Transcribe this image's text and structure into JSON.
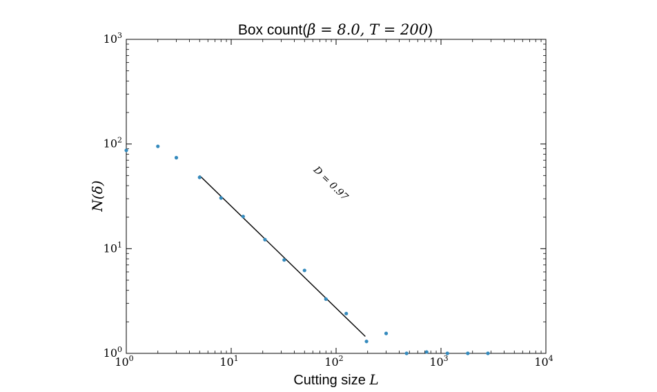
{
  "chart_data": {
    "type": "scatter",
    "title_prefix": "Box count(",
    "title_math": "β = 8.0, T = 200",
    "title_suffix": ")",
    "xlabel_text": "Cutting size ",
    "xlabel_math": "L",
    "ylabel": "N(δ)",
    "xscale": "log",
    "yscale": "log",
    "xlim": [
      1,
      10000
    ],
    "ylim": [
      1,
      1000
    ],
    "x_ticks": [
      {
        "base": "10",
        "exp": "0",
        "value": 1
      },
      {
        "base": "10",
        "exp": "1",
        "value": 10
      },
      {
        "base": "10",
        "exp": "2",
        "value": 100
      },
      {
        "base": "10",
        "exp": "3",
        "value": 1000
      },
      {
        "base": "10",
        "exp": "4",
        "value": 10000
      }
    ],
    "y_ticks": [
      {
        "base": "10",
        "exp": "0",
        "value": 1
      },
      {
        "base": "10",
        "exp": "1",
        "value": 10
      },
      {
        "base": "10",
        "exp": "2",
        "value": 100
      },
      {
        "base": "10",
        "exp": "3",
        "value": 1000
      }
    ],
    "grid": false,
    "marker_color": "#348abd",
    "line_color": "#000000",
    "series": [
      {
        "type": "scatter",
        "points": [
          {
            "x": 1,
            "y": 87
          },
          {
            "x": 2,
            "y": 95
          },
          {
            "x": 3,
            "y": 74
          },
          {
            "x": 5,
            "y": 48
          },
          {
            "x": 8,
            "y": 30.5
          },
          {
            "x": 13,
            "y": 20.3
          },
          {
            "x": 21,
            "y": 12.2
          },
          {
            "x": 32,
            "y": 7.8
          },
          {
            "x": 50,
            "y": 6.2
          },
          {
            "x": 80,
            "y": 3.3
          },
          {
            "x": 125,
            "y": 2.4
          },
          {
            "x": 195,
            "y": 1.3
          },
          {
            "x": 300,
            "y": 1.55
          },
          {
            "x": 470,
            "y": 1.0
          },
          {
            "x": 730,
            "y": 1.03
          },
          {
            "x": 1150,
            "y": 1.0
          },
          {
            "x": 1800,
            "y": 1.0
          },
          {
            "x": 2800,
            "y": 1.0
          }
        ]
      },
      {
        "type": "line",
        "points": [
          {
            "x": 5,
            "y": 50
          },
          {
            "x": 190,
            "y": 1.45
          }
        ]
      }
    ],
    "annotation": "D = 0.97",
    "annotation_anchor": {
      "x": 85,
      "y": 40
    }
  }
}
